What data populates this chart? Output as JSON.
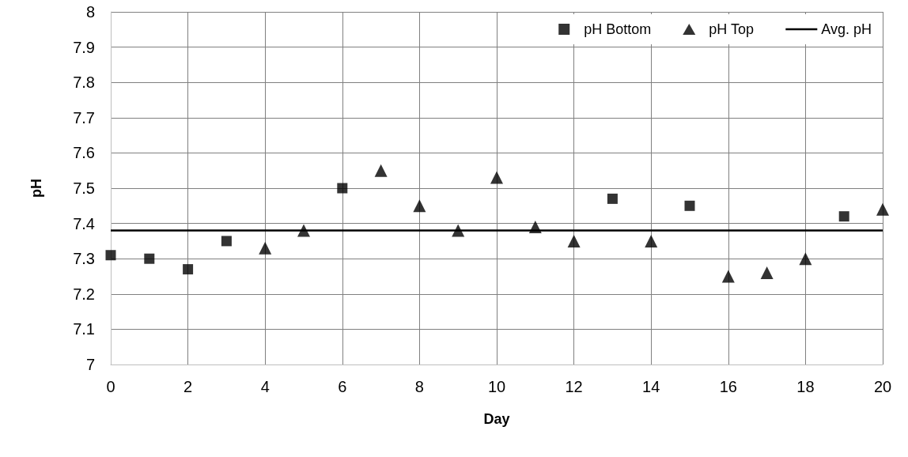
{
  "chart_data": {
    "type": "scatter",
    "xlabel": "Day",
    "ylabel": "pH",
    "xlim": [
      0,
      20
    ],
    "xticks": [
      0,
      2,
      4,
      6,
      8,
      10,
      12,
      14,
      16,
      18,
      20
    ],
    "ylim": [
      7,
      8
    ],
    "yticks": [
      7,
      7.1,
      7.2,
      7.3,
      7.4,
      7.5,
      7.6,
      7.7,
      7.8,
      7.9,
      8
    ],
    "grid": true,
    "legend": "top right",
    "series": [
      {
        "name": "pH Bottom",
        "color": "#000000",
        "marker": "square",
        "x": [
          0,
          1,
          2,
          3,
          6,
          13,
          15,
          19
        ],
        "values": [
          7.31,
          7.3,
          7.27,
          7.35,
          7.5,
          7.47,
          7.45,
          7.42
        ]
      },
      {
        "name": "pH Top",
        "color": "#000000",
        "marker": "triangle",
        "x": [
          4,
          5,
          7,
          8,
          9,
          10,
          11,
          12,
          14,
          16,
          17,
          18,
          20
        ],
        "values": [
          7.33,
          7.38,
          7.55,
          7.45,
          7.38,
          7.53,
          7.39,
          7.35,
          7.35,
          7.25,
          7.26,
          7.3,
          7.44
        ]
      },
      {
        "name": "Avg. pH",
        "type": "line",
        "color": "#000000",
        "marker": "none",
        "line_style": "solid",
        "x": [
          0,
          20
        ],
        "values": [
          7.38,
          7.38
        ]
      }
    ]
  }
}
